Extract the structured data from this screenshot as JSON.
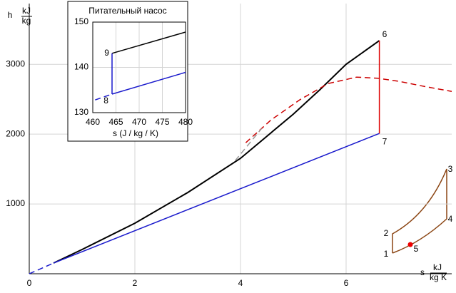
{
  "chart_data": [
    {
      "type": "line",
      "ylabel": "h",
      "yunit": {
        "num": "kJ",
        "den": "kg"
      },
      "xlabel": "s",
      "xunit": {
        "num": "kJ",
        "den": "kg K"
      },
      "xlim": [
        0,
        8
      ],
      "ylim": [
        0,
        3870
      ],
      "xticks": [
        0,
        2,
        4,
        6
      ],
      "yticks": [
        1000,
        2000,
        3000
      ],
      "grid": true,
      "series": [
        {
          "color": "#000000",
          "dash": false,
          "x": [
            0.46,
            1,
            2,
            3,
            4,
            5,
            5.5,
            6,
            6.63
          ],
          "values": [
            153,
            347,
            724,
            1163,
            1653,
            2286,
            2633,
            3000,
            3340
          ]
        },
        {
          "color": "#1a1acc",
          "dash": false,
          "x": [
            0.46,
            6.63
          ],
          "values": [
            153,
            2010
          ]
        },
        {
          "color": "#dd0000",
          "dash": false,
          "x": [
            6.63,
            6.63
          ],
          "values": [
            2010,
            3340
          ]
        },
        {
          "color": "#cc0000",
          "dash": true,
          "x": [
            4.1,
            4.58,
            5.12,
            5.66,
            6.2,
            6.6,
            7.01,
            7.5,
            8
          ],
          "values": [
            1877,
            2204,
            2490,
            2724,
            2816,
            2800,
            2755,
            2680,
            2612
          ]
        },
        {
          "color": "#1a1acc",
          "dash": true,
          "x": [
            0,
            0.46
          ],
          "values": [
            0,
            153
          ]
        },
        {
          "color": "#999999",
          "dash": true,
          "x": [
            3.9,
            4.4
          ],
          "values": [
            1620,
            2080
          ]
        }
      ],
      "points": [
        {
          "label": "6",
          "x": 6.63,
          "y": 3340
        },
        {
          "label": "7",
          "x": 6.63,
          "y": 2010
        }
      ]
    },
    {
      "type": "line",
      "title": "Питательный насос",
      "xlabel": "s (J / kg / K)",
      "xlim": [
        460,
        480
      ],
      "ylim": [
        130,
        150
      ],
      "xticks": [
        460,
        465,
        470,
        475,
        480
      ],
      "yticks": [
        130,
        140,
        150
      ],
      "grid": true,
      "series": [
        {
          "color": "#000000",
          "dash": false,
          "x": [
            464.15,
            480
          ],
          "values": [
            143.1,
            147.8
          ]
        },
        {
          "color": "#1a1acc",
          "dash": false,
          "x": [
            464.15,
            480
          ],
          "values": [
            134.1,
            138.9
          ]
        },
        {
          "color": "#1a1acc",
          "dash": false,
          "x": [
            464.15,
            464.15
          ],
          "values": [
            134.1,
            143.1
          ]
        },
        {
          "color": "#1a1acc",
          "dash": true,
          "x": [
            460.5,
            464.15
          ],
          "values": [
            132.8,
            134.1
          ]
        }
      ],
      "points": [
        {
          "label": "8",
          "x": 464.15,
          "y": 134.1
        },
        {
          "label": "9",
          "x": 464.15,
          "y": 143.1
        }
      ]
    }
  ],
  "cycle_icon": {
    "labels": [
      "1",
      "2",
      "3",
      "4",
      "5"
    ]
  }
}
